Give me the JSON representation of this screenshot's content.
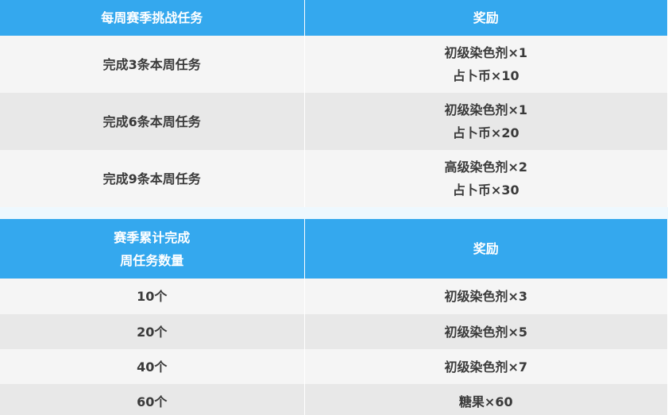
{
  "weekly": {
    "headers": [
      "每周赛季挑战任务",
      "奖励"
    ],
    "rows": [
      {
        "task": "完成3条本周任务",
        "rewards": [
          "初级染色剂×1",
          "占卜币×10"
        ]
      },
      {
        "task": "完成6条本周任务",
        "rewards": [
          "初级染色剂×1",
          "占卜币×20"
        ]
      },
      {
        "task": "完成9条本周任务",
        "rewards": [
          "高级染色剂×2",
          "占卜币×30"
        ]
      }
    ]
  },
  "season": {
    "headers": [
      [
        "赛季累计完成",
        "周任务数量"
      ],
      "奖励"
    ],
    "rows": [
      {
        "count": "10个",
        "reward": "初级染色剂×3"
      },
      {
        "count": "20个",
        "reward": "初级染色剂×5"
      },
      {
        "count": "40个",
        "reward": "初级染色剂×7"
      },
      {
        "count": "60个",
        "reward": "糖果×60"
      }
    ]
  },
  "colors": {
    "header": "#34a8ee",
    "row_light": "#f5f5f5",
    "row_dark": "#e8e8e8"
  }
}
